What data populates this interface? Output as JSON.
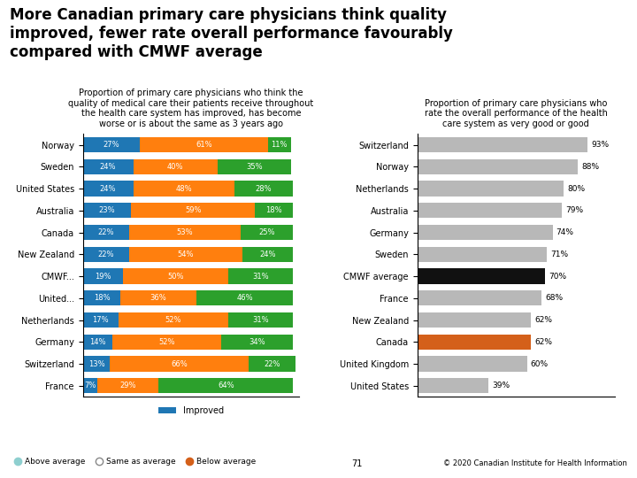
{
  "title": "More Canadian primary care physicians think quality\nimproved, fewer rate overall performance favourably\ncompared with CMWF average",
  "annotations": [
    "Above average",
    "Same as average",
    "Below average",
    "71",
    "© 2020 Canadian Institute for Health Information"
  ],
  "chart_data": [
    {
      "type": "bar",
      "orientation": "horizontal",
      "stacked": true,
      "subtitle": "Proportion of primary care physicians who think the\nquality of medical care their patients receive throughout\nthe health care system has improved, has become\nworse or is about the same as 3 years ago",
      "categories": [
        "Norway",
        "Sweden",
        "United States",
        "Australia",
        "Canada",
        "New Zealand",
        "CMWF...",
        "United...",
        "Netherlands",
        "Germany",
        "Switzerland",
        "France"
      ],
      "series": [
        {
          "name": "Improved",
          "values": [
            27,
            24,
            24,
            23,
            22,
            22,
            19,
            18,
            17,
            14,
            13,
            7
          ],
          "value_labels": [
            "27%",
            "24%",
            "24%",
            "23%",
            "22%",
            "22%",
            "19%",
            "18%",
            "17%",
            "14%",
            "13%",
            "7%"
          ]
        },
        {
          "values": [
            61,
            40,
            48,
            59,
            53,
            54,
            50,
            36,
            52,
            52,
            66,
            29
          ],
          "value_labels": [
            "61%",
            "40%",
            "48%",
            "59%",
            "53%",
            "54%",
            "50%",
            "36%",
            "52%",
            "52%",
            "66%",
            "29%"
          ]
        },
        {
          "values": [
            11,
            35,
            28,
            18,
            25,
            24,
            31,
            46,
            31,
            34,
            22,
            64
          ],
          "value_labels": [
            "11%",
            "35%",
            "28%",
            "18%",
            "25%",
            "24%",
            "31%",
            "46%",
            "31%",
            "34%",
            "22%",
            "64%"
          ]
        }
      ],
      "xlim": [
        0,
        103
      ],
      "tick_labels": "y",
      "data_labels": true,
      "legend": "lower center"
    },
    {
      "type": "bar",
      "orientation": "horizontal",
      "subtitle": "Proportion of primary care physicians who\nrate the overall performance of the health\ncare system as very good or good",
      "categories": [
        "Switzerland",
        "Norway",
        "Netherlands",
        "Australia",
        "Germany",
        "Sweden",
        "CMWF average",
        "France",
        "New Zealand",
        "Canada",
        "United Kingdom",
        "United States"
      ],
      "values": [
        93,
        88,
        80,
        79,
        74,
        71,
        70,
        68,
        62,
        62,
        60,
        39
      ],
      "value_labels": [
        "93%",
        "88%",
        "80%",
        "79%",
        "74%",
        "71%",
        "70%",
        "68%",
        "62%",
        "62%",
        "60%",
        "39%"
      ],
      "colors": [
        "#b8b8b8",
        "#b8b8b8",
        "#b8b8b8",
        "#b8b8b8",
        "#b8b8b8",
        "#b8b8b8",
        "#111111",
        "#b8b8b8",
        "#b8b8b8",
        "#d4601a",
        "#b8b8b8",
        "#b8b8b8"
      ],
      "xlim": [
        0,
        108
      ],
      "tick_labels": "y",
      "data_labels": true
    }
  ]
}
